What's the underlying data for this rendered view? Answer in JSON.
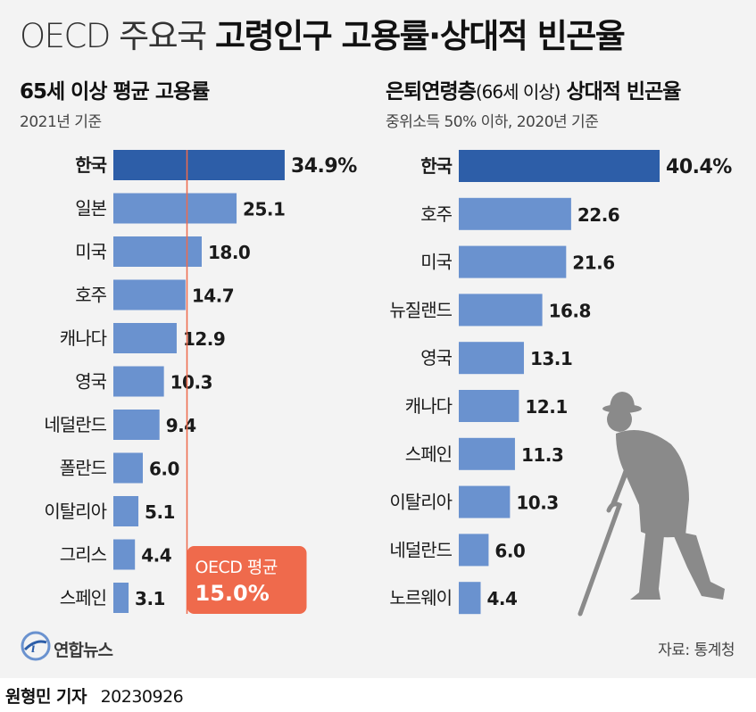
{
  "header": {
    "title_light": "OECD 주요국",
    "title_bold": "고령인구 고용률·상대적 빈곤율"
  },
  "left_panel": {
    "title": "65세 이상 평균 고용률",
    "note": "2021년 기준"
  },
  "right_panel": {
    "title_a": "은퇴연령층",
    "title_b": "(66세 이상)",
    "title_c": " 상대적 빈곤율",
    "note": "중위소득 50% 이하, 2020년 기준"
  },
  "oecd_avg": {
    "label": "OECD 평균",
    "value_text": "15.0%",
    "value": 15.0
  },
  "footer": {
    "logo": "연합뉴스",
    "source": "자료: 통계청",
    "reporter": "원형민 기자",
    "date": "20230926"
  },
  "colors": {
    "highlight_bar": "#2d5ea8",
    "bar": "#6a92cf",
    "oecd_line": "#ef6a4c",
    "oecd_box": "#ef6a4c",
    "silhouette": "#8a8a8a"
  },
  "chart_data": [
    {
      "type": "bar",
      "orientation": "horizontal",
      "title": "65세 이상 평균 고용률",
      "categories": [
        "한국",
        "일본",
        "미국",
        "호주",
        "캐나다",
        "영국",
        "네덜란드",
        "폴란드",
        "이탈리아",
        "그리스",
        "스페인"
      ],
      "values": [
        34.9,
        25.1,
        18.0,
        14.7,
        12.9,
        10.3,
        9.4,
        6.0,
        5.1,
        4.4,
        3.1
      ],
      "labels": [
        "34.9%",
        "25.1",
        "18.0",
        "14.7",
        "12.9",
        "10.3",
        "9.4",
        "6.0",
        "5.1",
        "4.4",
        "3.1"
      ],
      "unit": "%",
      "reference_line": 15.0
    },
    {
      "type": "bar",
      "orientation": "horizontal",
      "title": "은퇴연령층(66세 이상) 상대적 빈곤율",
      "categories": [
        "한국",
        "호주",
        "미국",
        "뉴질랜드",
        "영국",
        "캐나다",
        "스페인",
        "이탈리아",
        "네덜란드",
        "노르웨이"
      ],
      "values": [
        40.4,
        22.6,
        21.6,
        16.8,
        13.1,
        12.1,
        11.3,
        10.3,
        6.0,
        4.4
      ],
      "labels": [
        "40.4%",
        "22.6",
        "21.6",
        "16.8",
        "13.1",
        "12.1",
        "11.3",
        "10.3",
        "6.0",
        "4.4"
      ],
      "unit": "%"
    }
  ]
}
